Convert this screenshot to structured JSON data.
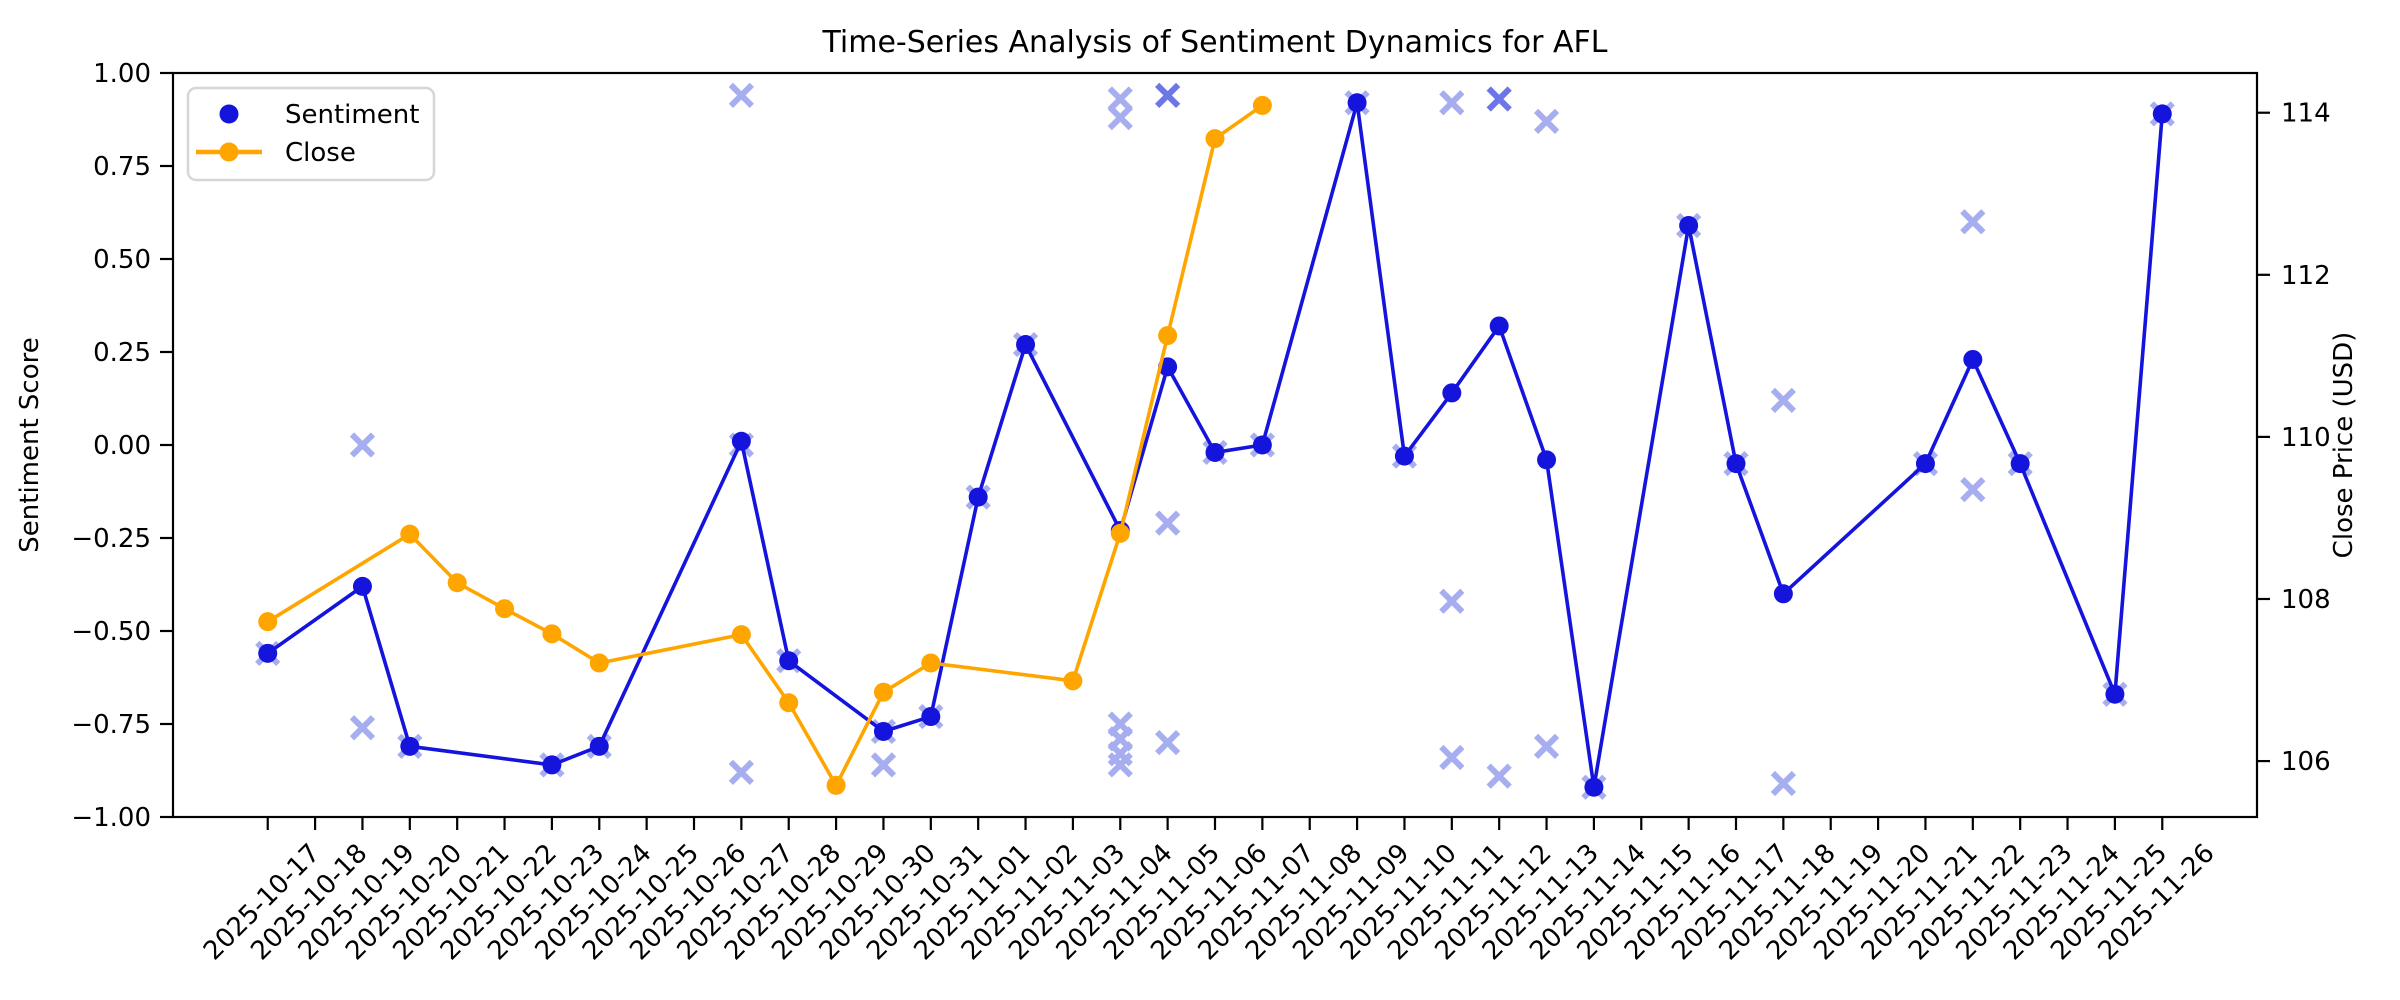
{
  "title": "Time-Series Analysis of Sentiment Dynamics for AFL",
  "legend": {
    "items": [
      {
        "label": "Sentiment",
        "marker": "dot",
        "color": "#1414dd"
      },
      {
        "label": "Close",
        "marker": "line-dot",
        "color": "#ffa500"
      }
    ]
  },
  "axes": {
    "left_label": "Sentiment Score",
    "right_label": "Close Price (USD)",
    "left_tick_labels": [
      "1.00",
      "0.75",
      "0.50",
      "0.25",
      "0.00",
      "−0.25",
      "−0.50",
      "−0.75",
      "−1.00"
    ],
    "left_tick_values": [
      1.0,
      0.75,
      0.5,
      0.25,
      0.0,
      -0.25,
      -0.5,
      -0.75,
      -1.0
    ],
    "right_tick_labels": [
      "114",
      "112",
      "110",
      "108",
      "106"
    ],
    "right_tick_values": [
      114,
      112,
      110,
      108,
      106
    ]
  },
  "colors": {
    "sentiment_line": "#1414dd",
    "close_line": "#ffa500",
    "observation_x": "#a7aef0",
    "observation_x_dark": "#6b77e6",
    "spine": "#000000",
    "text": "#000000",
    "legend_border": "#d6d6d6",
    "background": "#ffffff"
  },
  "chart_data": {
    "type": "line",
    "title": "Time-Series Analysis of Sentiment Dynamics for AFL",
    "xlabel": "",
    "ylabel_left": "Sentiment Score",
    "ylabel_right": "Close Price (USD)",
    "grid": false,
    "legend_position": "upper left",
    "left_ylim": [
      -1.0,
      1.0
    ],
    "right_ylim": [
      105.31,
      114.49
    ],
    "x_categories": [
      "2025-10-17",
      "2025-10-18",
      "2025-10-19",
      "2025-10-20",
      "2025-10-21",
      "2025-10-22",
      "2025-10-23",
      "2025-10-24",
      "2025-10-25",
      "2025-10-26",
      "2025-10-27",
      "2025-10-28",
      "2025-10-29",
      "2025-10-30",
      "2025-10-31",
      "2025-11-01",
      "2025-11-02",
      "2025-11-03",
      "2025-11-04",
      "2025-11-05",
      "2025-11-06",
      "2025-11-07",
      "2025-11-08",
      "2025-11-09",
      "2025-11-10",
      "2025-11-11",
      "2025-11-12",
      "2025-11-13",
      "2025-11-14",
      "2025-11-15",
      "2025-11-16",
      "2025-11-17",
      "2025-11-18",
      "2025-11-19",
      "2025-11-20",
      "2025-11-21",
      "2025-11-22",
      "2025-11-23",
      "2025-11-24",
      "2025-11-25",
      "2025-11-26"
    ],
    "series": [
      {
        "name": "Sentiment",
        "axis": "left",
        "style": "line-with-dots",
        "points": [
          {
            "date": "2025-10-17",
            "value": -0.56
          },
          {
            "date": "2025-10-19",
            "value": -0.38
          },
          {
            "date": "2025-10-20",
            "value": -0.81
          },
          {
            "date": "2025-10-23",
            "value": -0.86
          },
          {
            "date": "2025-10-24",
            "value": -0.81
          },
          {
            "date": "2025-10-27",
            "value": 0.01
          },
          {
            "date": "2025-10-28",
            "value": -0.58
          },
          {
            "date": "2025-10-30",
            "value": -0.77
          },
          {
            "date": "2025-10-31",
            "value": -0.73
          },
          {
            "date": "2025-11-01",
            "value": -0.14
          },
          {
            "date": "2025-11-02",
            "value": 0.27
          },
          {
            "date": "2025-11-04",
            "value": -0.23
          },
          {
            "date": "2025-11-05",
            "value": 0.21
          },
          {
            "date": "2025-11-06",
            "value": -0.02
          },
          {
            "date": "2025-11-07",
            "value": 0.0
          },
          {
            "date": "2025-11-09",
            "value": 0.92
          },
          {
            "date": "2025-11-10",
            "value": -0.03
          },
          {
            "date": "2025-11-11",
            "value": 0.14
          },
          {
            "date": "2025-11-12",
            "value": 0.32
          },
          {
            "date": "2025-11-13",
            "value": -0.04
          },
          {
            "date": "2025-11-14",
            "value": -0.92
          },
          {
            "date": "2025-11-16",
            "value": 0.59
          },
          {
            "date": "2025-11-17",
            "value": -0.05
          },
          {
            "date": "2025-11-18",
            "value": -0.4
          },
          {
            "date": "2025-11-21",
            "value": -0.05
          },
          {
            "date": "2025-11-22",
            "value": 0.23
          },
          {
            "date": "2025-11-23",
            "value": -0.05
          },
          {
            "date": "2025-11-25",
            "value": -0.67
          },
          {
            "date": "2025-11-26",
            "value": 0.89
          }
        ]
      },
      {
        "name": "Close",
        "axis": "right",
        "style": "line-with-dots",
        "points": [
          {
            "date": "2025-10-17",
            "value": 107.72
          },
          {
            "date": "2025-10-20",
            "value": 108.8
          },
          {
            "date": "2025-10-21",
            "value": 108.2
          },
          {
            "date": "2025-10-22",
            "value": 107.88
          },
          {
            "date": "2025-10-23",
            "value": 107.57
          },
          {
            "date": "2025-10-24",
            "value": 107.21
          },
          {
            "date": "2025-10-27",
            "value": 107.56
          },
          {
            "date": "2025-10-28",
            "value": 106.72
          },
          {
            "date": "2025-10-29",
            "value": 105.7
          },
          {
            "date": "2025-10-30",
            "value": 106.85
          },
          {
            "date": "2025-10-31",
            "value": 107.21
          },
          {
            "date": "2025-11-03",
            "value": 106.99
          },
          {
            "date": "2025-11-04",
            "value": 108.81
          },
          {
            "date": "2025-11-05",
            "value": 111.25
          },
          {
            "date": "2025-11-06",
            "value": 113.68
          },
          {
            "date": "2025-11-07",
            "value": 114.09
          }
        ]
      },
      {
        "name": "sentiment-observations",
        "axis": "left",
        "style": "x-scatter",
        "points": [
          {
            "date": "2025-10-17",
            "value": -0.56
          },
          {
            "date": "2025-10-19",
            "value": 0.0
          },
          {
            "date": "2025-10-19",
            "value": -0.76
          },
          {
            "date": "2025-10-20",
            "value": -0.81
          },
          {
            "date": "2025-10-23",
            "value": -0.86
          },
          {
            "date": "2025-10-24",
            "value": -0.81
          },
          {
            "date": "2025-10-27",
            "value": 0.94
          },
          {
            "date": "2025-10-27",
            "value": 0.0
          },
          {
            "date": "2025-10-27",
            "value": -0.88
          },
          {
            "date": "2025-10-28",
            "value": -0.58
          },
          {
            "date": "2025-10-30",
            "value": -0.77
          },
          {
            "date": "2025-10-30",
            "value": -0.86
          },
          {
            "date": "2025-10-31",
            "value": -0.73
          },
          {
            "date": "2025-11-01",
            "value": -0.14
          },
          {
            "date": "2025-11-02",
            "value": 0.27
          },
          {
            "date": "2025-11-04",
            "value": 0.93
          },
          {
            "date": "2025-11-04",
            "value": 0.88
          },
          {
            "date": "2025-11-04",
            "value": -0.75
          },
          {
            "date": "2025-11-04",
            "value": -0.79
          },
          {
            "date": "2025-11-04",
            "value": -0.83
          },
          {
            "date": "2025-11-04",
            "value": -0.86
          },
          {
            "date": "2025-11-05",
            "value": 0.94,
            "emphasis": true
          },
          {
            "date": "2025-11-05",
            "value": -0.21
          },
          {
            "date": "2025-11-05",
            "value": -0.8
          },
          {
            "date": "2025-11-06",
            "value": -0.02
          },
          {
            "date": "2025-11-07",
            "value": 0.0
          },
          {
            "date": "2025-11-09",
            "value": 0.92
          },
          {
            "date": "2025-11-10",
            "value": -0.03
          },
          {
            "date": "2025-11-11",
            "value": 0.92
          },
          {
            "date": "2025-11-11",
            "value": -0.42
          },
          {
            "date": "2025-11-11",
            "value": -0.84
          },
          {
            "date": "2025-11-12",
            "value": 0.93,
            "emphasis": true
          },
          {
            "date": "2025-11-12",
            "value": -0.89
          },
          {
            "date": "2025-11-13",
            "value": 0.87
          },
          {
            "date": "2025-11-13",
            "value": -0.81
          },
          {
            "date": "2025-11-14",
            "value": -0.92
          },
          {
            "date": "2025-11-16",
            "value": 0.59
          },
          {
            "date": "2025-11-17",
            "value": -0.05
          },
          {
            "date": "2025-11-18",
            "value": 0.12
          },
          {
            "date": "2025-11-18",
            "value": -0.91
          },
          {
            "date": "2025-11-21",
            "value": -0.05
          },
          {
            "date": "2025-11-22",
            "value": 0.6
          },
          {
            "date": "2025-11-22",
            "value": -0.12
          },
          {
            "date": "2025-11-23",
            "value": -0.05
          },
          {
            "date": "2025-11-25",
            "value": -0.67
          },
          {
            "date": "2025-11-26",
            "value": 0.89
          }
        ]
      }
    ]
  }
}
